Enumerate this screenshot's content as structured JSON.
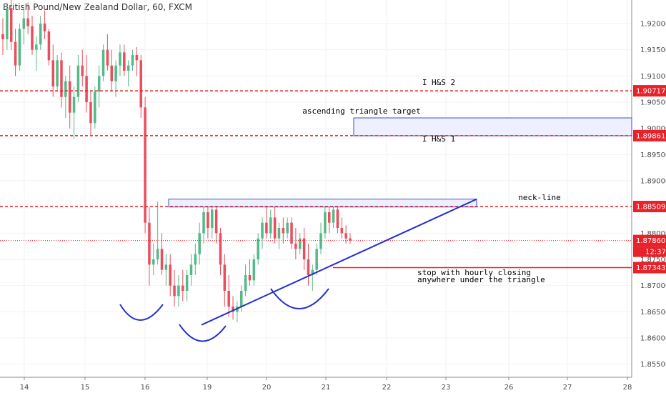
{
  "title": "British Pound/New Zealand Dollar, 60, FXCM",
  "colors": {
    "up": "#53b987",
    "down": "#eb4d5c",
    "level": "#e8212a",
    "trend": "#2631c8",
    "box_fill": "#eef0ff",
    "box_stroke": "#3f4ec9",
    "grid": "#f0f2f5",
    "current": "#e8212a"
  },
  "chart_data": {
    "type": "candlestick",
    "ylim": [
      1.8525,
      1.9245
    ],
    "y_ticks": [
      "1.85500",
      "1.86000",
      "1.86500",
      "1.87000",
      "1.87500",
      "1.88000",
      "1.88500",
      "1.89000",
      "1.89500",
      "1.90000",
      "1.90500",
      "1.91000",
      "1.91500",
      "1.92000"
    ],
    "x_ticks": [
      "14",
      "15",
      "16",
      "19",
      "20",
      "21",
      "22",
      "23",
      "26",
      "27",
      "28"
    ],
    "current_price": "1.87860",
    "countdown": "12:37",
    "levels": [
      {
        "label": "I H&S 2",
        "value": 1.90717,
        "tag": "1.90717"
      },
      {
        "label": "I H&S 1",
        "value": 1.89861,
        "tag": "1.89861"
      },
      {
        "label": "neck-line",
        "value": 1.88509,
        "tag": "1.88509"
      },
      {
        "label": "stop",
        "value": 1.87343,
        "tag": "1.87343"
      }
    ],
    "annotations": {
      "ih2": "I H&S 2",
      "ih1": "I H&S 1",
      "target": "ascending triangle target",
      "neck": "neck-line",
      "stop1": "stop with  hourly closing",
      "stop2": "anywhere under the triangle"
    },
    "trendline": {
      "from": {
        "x": "19",
        "y": 1.8625
      },
      "to": {
        "x": "23",
        "y": 1.8865
      }
    },
    "candles": [
      [
        1.918,
        1.921,
        1.914,
        1.917
      ],
      [
        1.917,
        1.924,
        1.915,
        1.923
      ],
      [
        1.923,
        1.9245,
        1.915,
        1.9165
      ],
      [
        1.9165,
        1.919,
        1.91,
        1.912
      ],
      [
        1.912,
        1.92,
        1.911,
        1.919
      ],
      [
        1.919,
        1.923,
        1.916,
        1.921
      ],
      [
        1.921,
        1.924,
        1.918,
        1.9195
      ],
      [
        1.9195,
        1.9215,
        1.914,
        1.915
      ],
      [
        1.915,
        1.9175,
        1.911,
        1.916
      ],
      [
        1.916,
        1.9215,
        1.915,
        1.92
      ],
      [
        1.92,
        1.9225,
        1.917,
        1.9185
      ],
      [
        1.9185,
        1.919,
        1.912,
        1.913
      ],
      [
        1.913,
        1.916,
        1.906,
        1.908
      ],
      [
        1.908,
        1.914,
        1.907,
        1.913
      ],
      [
        1.913,
        1.9145,
        1.904,
        1.906
      ],
      [
        1.906,
        1.91,
        1.902,
        1.909
      ],
      [
        1.909,
        1.912,
        1.9,
        1.903
      ],
      [
        1.903,
        1.908,
        1.898,
        1.906
      ],
      [
        1.906,
        1.914,
        1.905,
        1.912
      ],
      [
        1.912,
        1.915,
        1.908,
        1.91
      ],
      [
        1.91,
        1.914,
        1.903,
        1.905
      ],
      [
        1.905,
        1.907,
        1.8985,
        1.901
      ],
      [
        1.901,
        1.908,
        1.9,
        1.907
      ],
      [
        1.907,
        1.912,
        1.904,
        1.91
      ],
      [
        1.91,
        1.916,
        1.909,
        1.915
      ],
      [
        1.915,
        1.918,
        1.911,
        1.912
      ],
      [
        1.912,
        1.915,
        1.907,
        1.909
      ],
      [
        1.909,
        1.913,
        1.906,
        1.912
      ],
      [
        1.912,
        1.916,
        1.91,
        1.9145
      ],
      [
        1.9145,
        1.916,
        1.91,
        1.911
      ],
      [
        1.911,
        1.913,
        1.908,
        1.912
      ],
      [
        1.912,
        1.915,
        1.911,
        1.914
      ],
      [
        1.914,
        1.9155,
        1.91,
        1.913
      ],
      [
        1.913,
        1.914,
        1.902,
        1.904
      ],
      [
        1.904,
        1.906,
        1.88,
        1.882
      ],
      [
        1.882,
        1.885,
        1.87,
        1.874
      ],
      [
        1.874,
        1.878,
        1.872,
        1.875
      ],
      [
        1.875,
        1.886,
        1.874,
        1.877
      ],
      [
        1.877,
        1.88,
        1.872,
        1.873
      ],
      [
        1.873,
        1.876,
        1.87,
        1.874
      ],
      [
        1.874,
        1.876,
        1.868,
        1.87
      ],
      [
        1.87,
        1.873,
        1.866,
        1.868
      ],
      [
        1.868,
        1.872,
        1.866,
        1.87
      ],
      [
        1.87,
        1.873,
        1.867,
        1.869
      ],
      [
        1.869,
        1.873,
        1.867,
        1.872
      ],
      [
        1.872,
        1.876,
        1.87,
        1.874
      ],
      [
        1.874,
        1.878,
        1.872,
        1.876
      ],
      [
        1.876,
        1.882,
        1.874,
        1.88
      ],
      [
        1.88,
        1.885,
        1.878,
        1.884
      ],
      [
        1.884,
        1.8862,
        1.879,
        1.881
      ],
      [
        1.881,
        1.8855,
        1.879,
        1.8845
      ],
      [
        1.8845,
        1.886,
        1.878,
        1.88
      ],
      [
        1.88,
        1.881,
        1.872,
        1.874
      ],
      [
        1.874,
        1.876,
        1.866,
        1.869
      ],
      [
        1.869,
        1.872,
        1.864,
        1.866
      ],
      [
        1.866,
        1.868,
        1.8635,
        1.865
      ],
      [
        1.865,
        1.867,
        1.863,
        1.866
      ],
      [
        1.866,
        1.87,
        1.865,
        1.869
      ],
      [
        1.869,
        1.874,
        1.868,
        1.872
      ],
      [
        1.872,
        1.875,
        1.87,
        1.871
      ],
      [
        1.871,
        1.876,
        1.87,
        1.875
      ],
      [
        1.875,
        1.88,
        1.874,
        1.879
      ],
      [
        1.879,
        1.883,
        1.877,
        1.882
      ],
      [
        1.882,
        1.885,
        1.879,
        1.88
      ],
      [
        1.88,
        1.8845,
        1.879,
        1.883
      ],
      [
        1.883,
        1.885,
        1.878,
        1.879
      ],
      [
        1.879,
        1.882,
        1.877,
        1.881
      ],
      [
        1.881,
        1.883,
        1.878,
        1.88
      ],
      [
        1.88,
        1.883,
        1.879,
        1.882
      ],
      [
        1.882,
        1.883,
        1.877,
        1.878
      ],
      [
        1.878,
        1.881,
        1.875,
        1.877
      ],
      [
        1.877,
        1.88,
        1.876,
        1.879
      ],
      [
        1.879,
        1.881,
        1.873,
        1.875
      ],
      [
        1.875,
        1.878,
        1.87,
        1.872
      ],
      [
        1.872,
        1.874,
        1.869,
        1.873
      ],
      [
        1.873,
        1.878,
        1.872,
        1.877
      ],
      [
        1.877,
        1.882,
        1.876,
        1.88
      ],
      [
        1.88,
        1.885,
        1.879,
        1.884
      ],
      [
        1.884,
        1.8852,
        1.88,
        1.882
      ],
      [
        1.882,
        1.885,
        1.881,
        1.8845
      ],
      [
        1.8845,
        1.8852,
        1.88,
        1.881
      ],
      [
        1.881,
        1.883,
        1.879,
        1.88
      ],
      [
        1.88,
        1.8815,
        1.878,
        1.879
      ],
      [
        1.879,
        1.88,
        1.878,
        1.8786
      ]
    ]
  }
}
